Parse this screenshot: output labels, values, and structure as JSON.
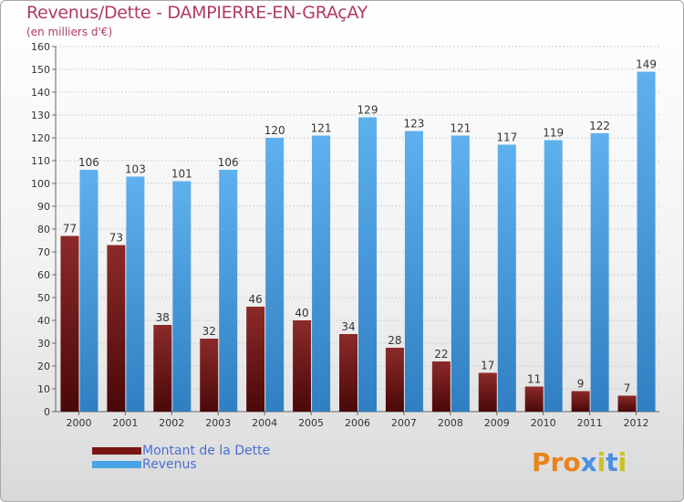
{
  "title": "Revenus/Dette - DAMPIERRE-EN-GRAçAY",
  "subtitle": "(en milliers d'€)",
  "legend": [
    {
      "label": "Montant de la Dette",
      "color": "#7a1515"
    },
    {
      "label": "Revenus",
      "color": "#4aa3e6"
    }
  ],
  "logo": {
    "text": "Proxiti",
    "colors": [
      "#e8841c",
      "#e8841c",
      "#e8841c",
      "#4a90e2",
      "#c8c320",
      "#4a90e2",
      "#c8c320"
    ]
  },
  "chart_data": {
    "type": "bar",
    "categories": [
      "2000",
      "2001",
      "2002",
      "2003",
      "2004",
      "2005",
      "2006",
      "2007",
      "2008",
      "2009",
      "2010",
      "2011",
      "2012"
    ],
    "series": [
      {
        "name": "Montant de la Dette",
        "color": "#7a1515",
        "values": [
          77,
          73,
          38,
          32,
          46,
          40,
          34,
          28,
          22,
          17,
          11,
          9,
          7
        ]
      },
      {
        "name": "Revenus",
        "color": "#4aa3e6",
        "values": [
          106,
          103,
          101,
          106,
          120,
          121,
          129,
          123,
          121,
          117,
          119,
          122,
          149
        ]
      }
    ],
    "yticks": [
      "0",
      "10",
      "20",
      "30",
      "40",
      "50",
      "60",
      "70",
      "80",
      "90",
      "100",
      "110",
      "120",
      "130",
      "140",
      "150",
      "160"
    ],
    "ylim": [
      0,
      160
    ],
    "grid": true
  }
}
